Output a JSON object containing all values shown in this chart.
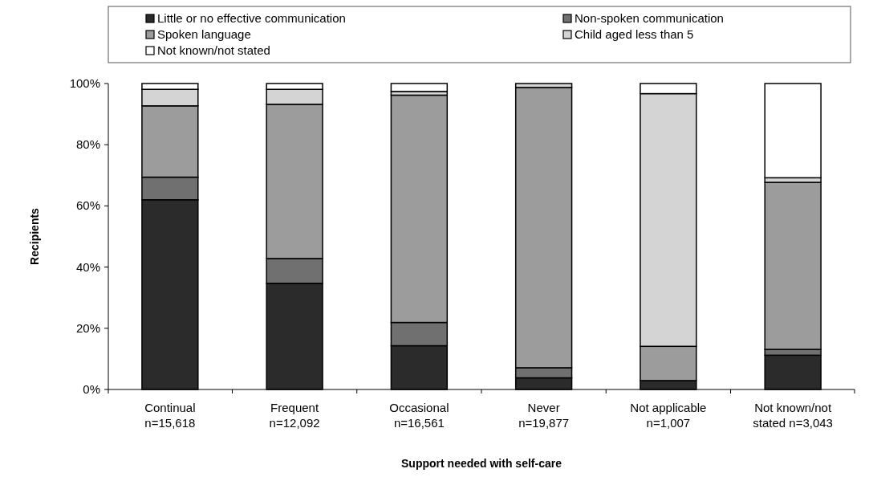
{
  "chart_data": {
    "type": "bar",
    "stacked": true,
    "xlabel": "Support needed with self-care",
    "ylabel": "Recipients",
    "categories": [
      "Continual\nn=15,618",
      "Frequent\nn=12,092",
      "Occasional\nn=16,561",
      "Never\nn=19,877",
      "Not applicable\nn=1,007",
      "Not known/not\nstated n=3,043"
    ],
    "series": [
      {
        "name": "Little or no effective communication",
        "color": "#2b2b2b",
        "values": [
          62.0,
          34.7,
          14.3,
          3.8,
          2.9,
          11.2
        ]
      },
      {
        "name": "Non-spoken communication",
        "color": "#707070",
        "values": [
          7.4,
          8.1,
          7.6,
          3.3,
          0,
          1.9
        ]
      },
      {
        "name": "Spoken language",
        "color": "#9c9c9c",
        "values": [
          23.3,
          50.4,
          74.3,
          91.6,
          11.2,
          54.6
        ]
      },
      {
        "name": "Child aged less than 5",
        "color": "#d4d4d4",
        "values": [
          5.4,
          4.9,
          1.2,
          1.3,
          82.6,
          1.5
        ]
      },
      {
        "name": "Not known/not stated",
        "color": "#ffffff",
        "values": [
          1.9,
          1.9,
          2.6,
          0,
          3.3,
          30.8
        ]
      }
    ],
    "ylim": [
      0,
      100
    ],
    "yticks": [
      {
        "value": 0,
        "label": "0%"
      },
      {
        "value": 20,
        "label": "20%"
      },
      {
        "value": 40,
        "label": "40%"
      },
      {
        "value": 60,
        "label": "60%"
      },
      {
        "value": 80,
        "label": "80%"
      },
      {
        "value": 100,
        "label": "100%"
      }
    ],
    "grid": false,
    "legend": "top"
  }
}
